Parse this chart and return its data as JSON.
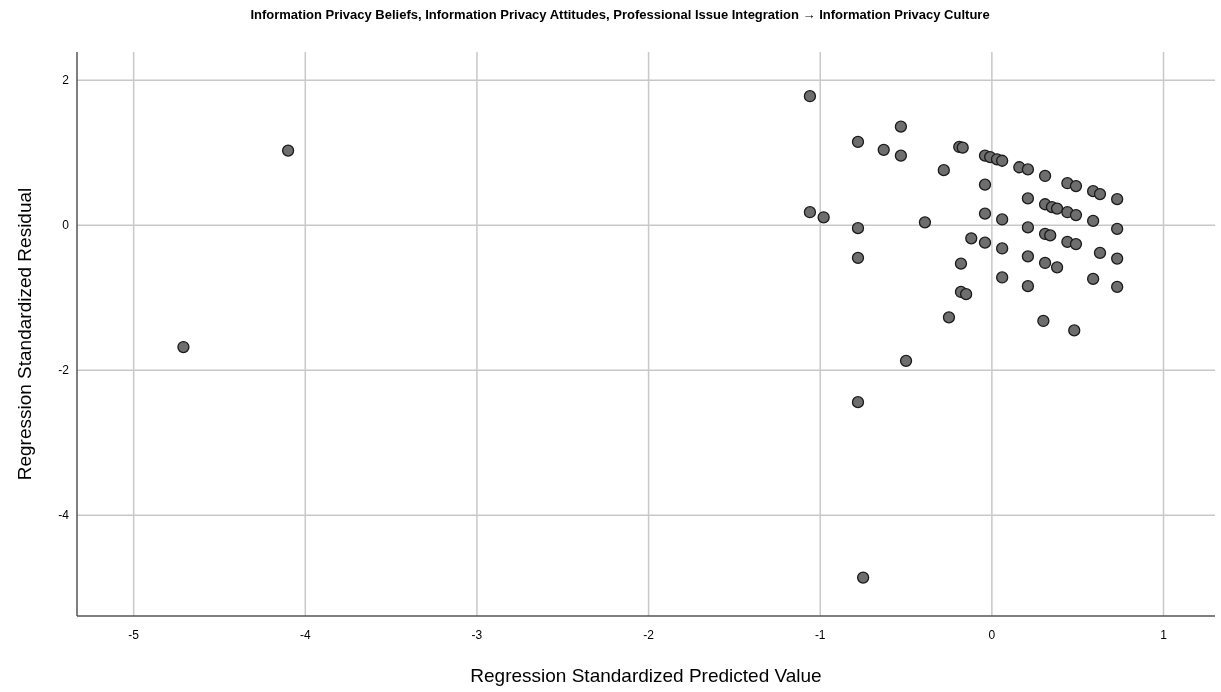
{
  "chart_data": {
    "type": "scatter",
    "title": "Information Privacy Beliefs, Information Privacy Attitudes, Professional Issue Integration → Information Privacy Culture",
    "xlabel": "Regression Standardized Predicted Value",
    "ylabel": "Regression Standardized Residual",
    "xlim": [
      -5.33,
      1.3
    ],
    "ylim": [
      -5.39,
      2.39
    ],
    "xticks": [
      -5,
      -4,
      -3,
      -2,
      -1,
      0,
      1
    ],
    "yticks": [
      -4,
      -2,
      0,
      2
    ],
    "grid": true,
    "marker": "circle",
    "series": [
      {
        "color": "#6e6e6e",
        "x": [
          -4.71,
          -4.1,
          -1.06,
          -0.78,
          -0.53,
          -0.63,
          -0.53,
          -0.28,
          -0.19,
          -0.17,
          -0.04,
          -0.01,
          0.03,
          0.06,
          0.16,
          0.21,
          0.31,
          0.44,
          0.49,
          0.59,
          0.63,
          0.73,
          -0.04,
          0.21,
          0.31,
          0.35,
          0.38,
          0.44,
          0.49,
          0.59,
          0.73,
          -1.06,
          -0.98,
          -0.78,
          -0.39,
          -0.04,
          0.06,
          0.21,
          0.31,
          0.34,
          0.44,
          0.49,
          0.63,
          0.73,
          -0.12,
          -0.04,
          0.06,
          -0.78,
          -0.18,
          0.21,
          0.31,
          0.38,
          0.06,
          0.21,
          0.59,
          0.73,
          -0.18,
          -0.15,
          -0.25,
          -0.5,
          -0.78,
          -0.75,
          0.3,
          0.48
        ],
        "values": [
          -1.68,
          1.03,
          1.78,
          1.15,
          1.36,
          1.04,
          0.96,
          0.76,
          1.08,
          1.07,
          0.96,
          0.94,
          0.91,
          0.89,
          0.8,
          0.77,
          0.68,
          0.58,
          0.54,
          0.47,
          0.43,
          0.36,
          0.56,
          0.37,
          0.29,
          0.25,
          0.23,
          0.18,
          0.14,
          0.06,
          -0.05,
          0.18,
          0.11,
          -0.04,
          0.04,
          0.16,
          0.08,
          -0.03,
          -0.12,
          -0.14,
          -0.23,
          -0.26,
          -0.38,
          -0.46,
          -0.18,
          -0.24,
          -0.32,
          -0.45,
          -0.53,
          -0.43,
          -0.52,
          -0.58,
          -0.72,
          -0.84,
          -0.74,
          -0.85,
          -0.92,
          -0.95,
          -1.27,
          -1.87,
          -2.44,
          -4.86,
          -1.32,
          -1.45
        ]
      }
    ]
  }
}
